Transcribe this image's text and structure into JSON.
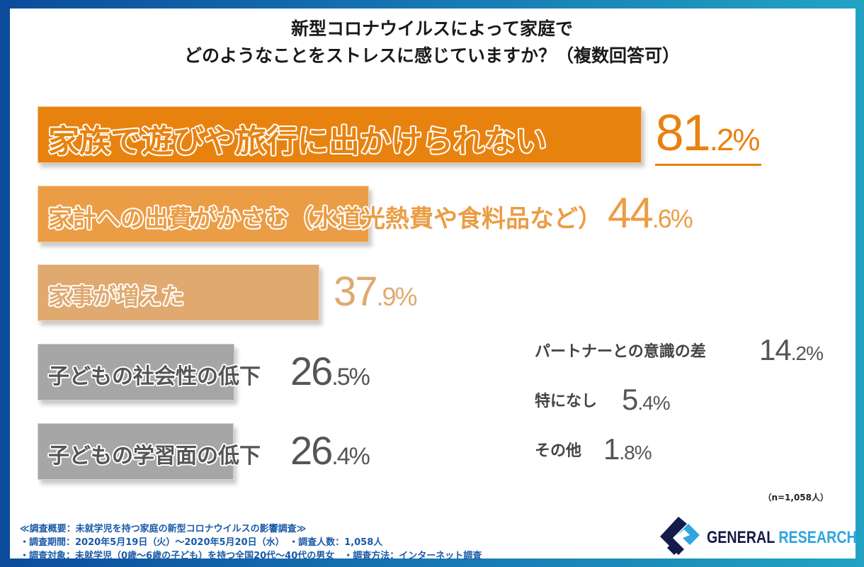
{
  "title": {
    "line1": "新型コロナウイルスによって家庭で",
    "line2": "どのようなことをストレスに感じていますか？（複数回答可）"
  },
  "chart_data": {
    "type": "bar",
    "orientation": "horizontal",
    "unit": "%",
    "categories": [
      "家族で遊びや旅行に出かけられない",
      "家計への出費がかさむ（水道光熱費や食料品など）",
      "家事が増えた",
      "子どもの社会性の低下",
      "子どもの学習面の低下",
      "パートナーとの意識の差",
      "特になし",
      "その他"
    ],
    "values": [
      81.2,
      44.6,
      37.9,
      26.5,
      26.4,
      14.2,
      5.4,
      1.8
    ],
    "value_labels": [
      "81.2%",
      "44.6%",
      "37.9%",
      "26.5%",
      "26.4%",
      "14.2%",
      "5.4%",
      "1.8%"
    ],
    "bar_colors": [
      "#e8820f",
      "#eb9d45",
      "#e0a96f",
      "#a6a6a6",
      "#a6a6a6"
    ],
    "label_colors": [
      "#e8820f",
      "#eb9d45",
      "#e0a96f",
      "#555555",
      "#555555"
    ],
    "grid": false
  },
  "sample_note": "（n=1,058人）",
  "footer": {
    "heading": "≪調査概要：未就学児を持つ家庭の新型コロナウイルスの影響調査≫",
    "line1": "・調査期間：2020年5月19日（火）～2020年5月20日（水）　・調査人数：1,058人",
    "line2": "・調査対象：未就学児（0歳～6歳の子ども）を持つ全国20代～40代の男女　・調査方法：インターネット調査"
  },
  "logo": {
    "word1": "GENERAL",
    "word2": "RESEARCH",
    "color1": "#141a4a",
    "color2": "#2ea6e0"
  }
}
